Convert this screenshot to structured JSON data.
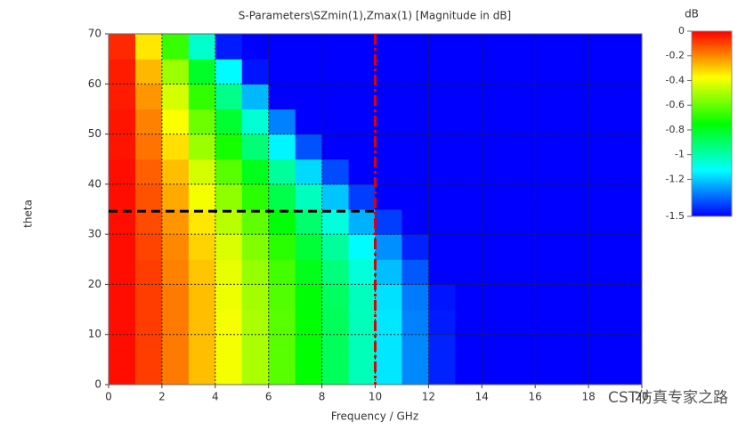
{
  "chart_data": {
    "type": "heatmap",
    "title": "S-Parameters\\SZmin(1),Zmax(1) [Magnitude in dB]",
    "xlabel": "Frequency / GHz",
    "ylabel": "theta",
    "xlim": [
      0,
      20
    ],
    "ylim": [
      0,
      70
    ],
    "xticks": [
      0,
      2,
      4,
      6,
      8,
      10,
      12,
      14,
      16,
      18,
      20
    ],
    "yticks": [
      0,
      10,
      20,
      30,
      40,
      50,
      60,
      70
    ],
    "grid": true,
    "xbins": [
      0,
      1,
      2,
      3,
      4,
      5,
      6,
      7,
      8,
      9,
      10,
      11,
      12,
      13,
      14,
      15,
      16,
      17,
      18,
      19,
      20
    ],
    "ybins": [
      0,
      5,
      10,
      15,
      20,
      25,
      30,
      35,
      40,
      45,
      50,
      55,
      60,
      65,
      70
    ],
    "z": [
      [
        -0.02,
        -0.09,
        -0.18,
        -0.28,
        -0.39,
        -0.5,
        -0.62,
        -0.75,
        -0.88,
        -1.02,
        -1.16,
        -1.3,
        -1.45,
        -1.5,
        -1.5,
        -1.5,
        -1.5,
        -1.5,
        -1.5,
        -1.5
      ],
      [
        -0.02,
        -0.09,
        -0.18,
        -0.28,
        -0.39,
        -0.5,
        -0.62,
        -0.75,
        -0.88,
        -1.02,
        -1.16,
        -1.3,
        -1.45,
        -1.5,
        -1.5,
        -1.5,
        -1.5,
        -1.5,
        -1.5,
        -1.5
      ],
      [
        -0.02,
        -0.09,
        -0.18,
        -0.28,
        -0.39,
        -0.5,
        -0.62,
        -0.75,
        -0.88,
        -1.02,
        -1.16,
        -1.31,
        -1.46,
        -1.5,
        -1.5,
        -1.5,
        -1.5,
        -1.5,
        -1.5,
        -1.5
      ],
      [
        -0.02,
        -0.09,
        -0.18,
        -0.28,
        -0.4,
        -0.51,
        -0.63,
        -0.76,
        -0.89,
        -1.03,
        -1.17,
        -1.32,
        -1.47,
        -1.5,
        -1.5,
        -1.5,
        -1.5,
        -1.5,
        -1.5,
        -1.5
      ],
      [
        -0.02,
        -0.09,
        -0.19,
        -0.29,
        -0.41,
        -0.53,
        -0.65,
        -0.79,
        -0.93,
        -1.07,
        -1.22,
        -1.37,
        -1.5,
        -1.5,
        -1.5,
        -1.5,
        -1.5,
        -1.5,
        -1.5,
        -1.5
      ],
      [
        -0.02,
        -0.1,
        -0.2,
        -0.31,
        -0.43,
        -0.56,
        -0.69,
        -0.83,
        -0.98,
        -1.13,
        -1.29,
        -1.45,
        -1.5,
        -1.5,
        -1.5,
        -1.5,
        -1.5,
        -1.5,
        -1.5,
        -1.5
      ],
      [
        -0.02,
        -0.11,
        -0.22,
        -0.34,
        -0.48,
        -0.61,
        -0.76,
        -0.91,
        -1.07,
        -1.24,
        -1.41,
        -1.5,
        -1.5,
        -1.5,
        -1.5,
        -1.5,
        -1.5,
        -1.5,
        -1.5,
        -1.5
      ],
      [
        -0.02,
        -0.12,
        -0.25,
        -0.39,
        -0.54,
        -0.69,
        -0.86,
        -1.03,
        -1.21,
        -1.41,
        -1.5,
        -1.5,
        -1.5,
        -1.5,
        -1.5,
        -1.5,
        -1.5,
        -1.5,
        -1.5,
        -1.5
      ],
      [
        -0.02,
        -0.14,
        -0.28,
        -0.44,
        -0.62,
        -0.79,
        -0.98,
        -1.18,
        -1.39,
        -1.5,
        -1.5,
        -1.5,
        -1.5,
        -1.5,
        -1.5,
        -1.5,
        -1.5,
        -1.5,
        -1.5,
        -1.5
      ],
      [
        -0.03,
        -0.17,
        -0.33,
        -0.52,
        -0.72,
        -0.92,
        -1.14,
        -1.38,
        -1.5,
        -1.5,
        -1.5,
        -1.5,
        -1.5,
        -1.5,
        -1.5,
        -1.5,
        -1.5,
        -1.5,
        -1.5,
        -1.5
      ],
      [
        -0.03,
        -0.19,
        -0.38,
        -0.59,
        -0.82,
        -1.06,
        -1.31,
        -1.5,
        -1.5,
        -1.5,
        -1.5,
        -1.5,
        -1.5,
        -1.5,
        -1.5,
        -1.5,
        -1.5,
        -1.5,
        -1.5,
        -1.5
      ],
      [
        -0.04,
        -0.22,
        -0.44,
        -0.68,
        -0.95,
        -1.23,
        -1.5,
        -1.5,
        -1.5,
        -1.5,
        -1.5,
        -1.5,
        -1.5,
        -1.5,
        -1.5,
        -1.5,
        -1.5,
        -1.5,
        -1.5,
        -1.5
      ],
      [
        -0.04,
        -0.27,
        -0.52,
        -0.81,
        -1.13,
        -1.47,
        -1.5,
        -1.5,
        -1.5,
        -1.5,
        -1.5,
        -1.5,
        -1.5,
        -1.5,
        -1.5,
        -1.5,
        -1.5,
        -1.5,
        -1.5,
        -1.5
      ],
      [
        -0.06,
        -0.34,
        -0.67,
        -1.05,
        -1.46,
        -1.5,
        -1.5,
        -1.5,
        -1.5,
        -1.5,
        -1.5,
        -1.5,
        -1.5,
        -1.5,
        -1.5,
        -1.5,
        -1.5,
        -1.5,
        -1.5,
        -1.5
      ]
    ],
    "colorbar_label": "dB",
    "zlim": [
      -1.5,
      0
    ],
    "zticks": [
      0,
      -0.2,
      -0.4,
      -0.6,
      -0.8,
      -1,
      -1.2,
      -1.5
    ],
    "colormap": [
      "#0000ff",
      "#00ffff",
      "#00ff00",
      "#ffff00",
      "#ff0000"
    ],
    "reference_lines": [
      {
        "axis": "y",
        "value": 34.6,
        "from": 0,
        "to": 10,
        "color": "#000000"
      },
      {
        "axis": "x",
        "value": 10,
        "color": "#e00000"
      }
    ],
    "watermark": "CST仿真专家之路"
  }
}
